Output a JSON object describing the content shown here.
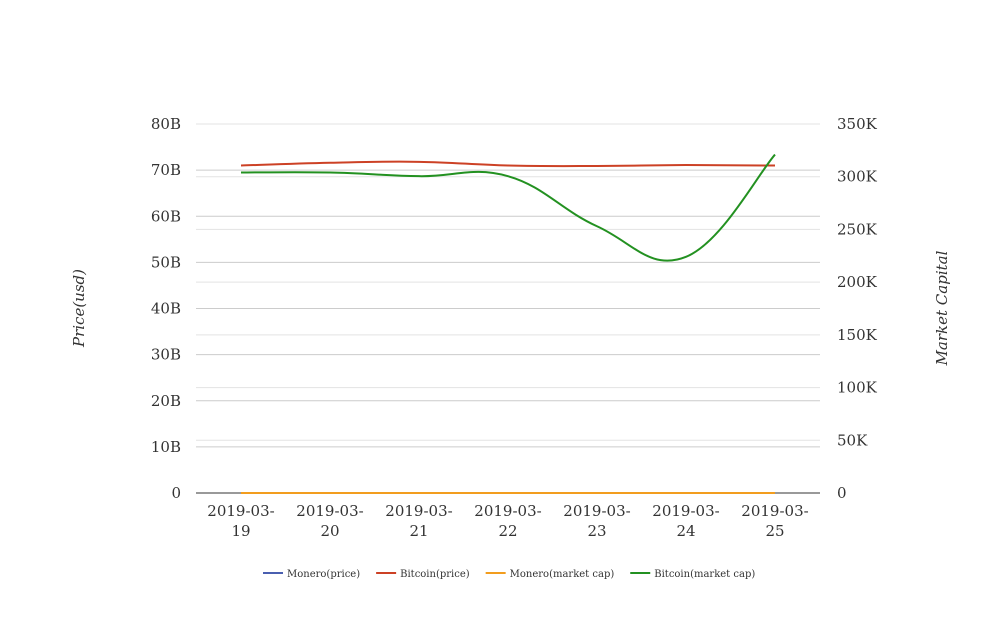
{
  "chart_data": {
    "type": "line",
    "x": [
      "2019-03-19",
      "2019-03-20",
      "2019-03-21",
      "2019-03-22",
      "2019-03-23",
      "2019-03-24",
      "2019-03-25"
    ],
    "x_tick_labels": [
      [
        "2019-03-",
        "19"
      ],
      [
        "2019-03-",
        "20"
      ],
      [
        "2019-03-",
        "21"
      ],
      [
        "2019-03-",
        "22"
      ],
      [
        "2019-03-",
        "23"
      ],
      [
        "2019-03-",
        "24"
      ],
      [
        "2019-03-",
        "25"
      ]
    ],
    "ylabel_left": "Price(usd)",
    "ylabel_right": "Market Capital",
    "ylim_left": [
      0,
      80000000000
    ],
    "ylim_right": [
      0,
      350000
    ],
    "y_ticks_left": [
      0,
      10000000000,
      20000000000,
      30000000000,
      40000000000,
      50000000000,
      60000000000,
      70000000000,
      80000000000
    ],
    "y_tick_labels_left": [
      "0",
      "10B",
      "20B",
      "30B",
      "40B",
      "50B",
      "60B",
      "70B",
      "80B"
    ],
    "y_ticks_right": [
      0,
      50000,
      100000,
      150000,
      200000,
      250000,
      300000,
      350000
    ],
    "y_tick_labels_right": [
      "0",
      "50K",
      "100K",
      "150K",
      "200K",
      "250K",
      "300K",
      "350K"
    ],
    "grid": true,
    "legend_position": "bottom",
    "series": [
      {
        "name": "Monero(price)",
        "axis": "left",
        "color": "#4a5fb0",
        "values": [
          0,
          0,
          0,
          0,
          0,
          0,
          0
        ]
      },
      {
        "name": "Bitcoin(price)",
        "axis": "left",
        "color": "#cc4125",
        "values": [
          71000000000,
          71600000000,
          71800000000,
          71000000000,
          70900000000,
          71100000000,
          71000000000
        ]
      },
      {
        "name": "Monero(market cap)",
        "axis": "left",
        "color": "#f29d1e",
        "values": [
          0,
          0,
          0,
          0,
          0,
          0,
          0
        ]
      },
      {
        "name": "Bitcoin(market cap)",
        "axis": "right",
        "color": "#239121",
        "values": [
          304000,
          304000,
          300500,
          300500,
          253000,
          224000,
          321000
        ]
      }
    ]
  }
}
